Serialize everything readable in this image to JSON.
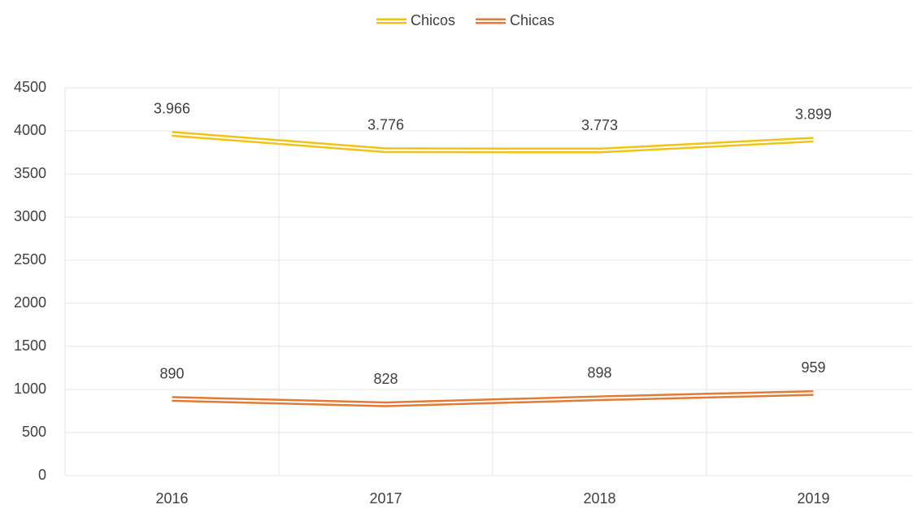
{
  "chart_data": {
    "type": "line",
    "categories": [
      "2016",
      "2017",
      "2018",
      "2019"
    ],
    "series": [
      {
        "name": "Chicos",
        "color": "#f2c314",
        "values": [
          3966,
          3776,
          3773,
          3899
        ],
        "value_labels": [
          "3.966",
          "3.776",
          "3.773",
          "3.899"
        ]
      },
      {
        "name": "Chicas",
        "color": "#e27b36",
        "values": [
          890,
          828,
          898,
          959
        ]
      }
    ],
    "ylim": [
      0,
      4500
    ],
    "yticks": [
      0,
      500,
      1000,
      1500,
      2000,
      2500,
      3000,
      3500,
      4000,
      4500
    ],
    "grid": true,
    "legend": "top"
  }
}
